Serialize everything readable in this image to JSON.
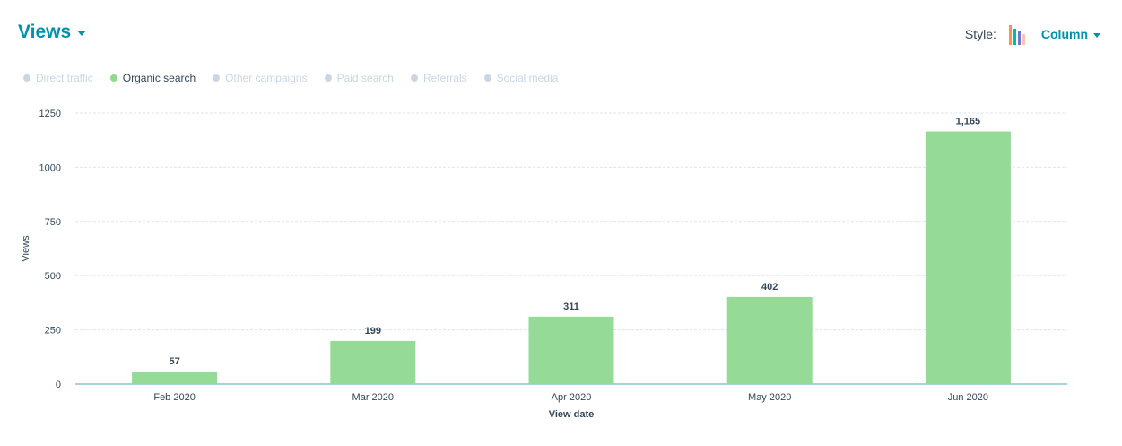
{
  "header": {
    "title": "Views"
  },
  "style_control": {
    "label": "Style:",
    "value": "Column",
    "icon": "column-chart-icon"
  },
  "colors": {
    "accent": "#0091ae",
    "bar": "#95db97",
    "inactive": "#cbd6e2",
    "text": "#33475b",
    "legend_active_dot": "#8fda8e",
    "axis_line": "#4fa8b8"
  },
  "legend": {
    "items": [
      {
        "label": "Direct traffic",
        "active": false
      },
      {
        "label": "Organic search",
        "active": true
      },
      {
        "label": "Other campaigns",
        "active": false
      },
      {
        "label": "Paid search",
        "active": false
      },
      {
        "label": "Referrals",
        "active": false
      },
      {
        "label": "Social media",
        "active": false
      }
    ]
  },
  "chart_data": {
    "type": "bar",
    "categories": [
      "Feb 2020",
      "Mar 2020",
      "Apr 2020",
      "May 2020",
      "Jun 2020"
    ],
    "series": [
      {
        "name": "Organic search",
        "values": [
          57,
          199,
          311,
          402,
          1165
        ]
      }
    ],
    "data_labels": [
      "57",
      "199",
      "311",
      "402",
      "1,165"
    ],
    "xlabel": "View date",
    "ylabel": "Views",
    "ylim": [
      0,
      1250
    ],
    "yticks": [
      0,
      250,
      500,
      750,
      1000,
      1250
    ],
    "grid": true,
    "legend_position": "top-left"
  }
}
